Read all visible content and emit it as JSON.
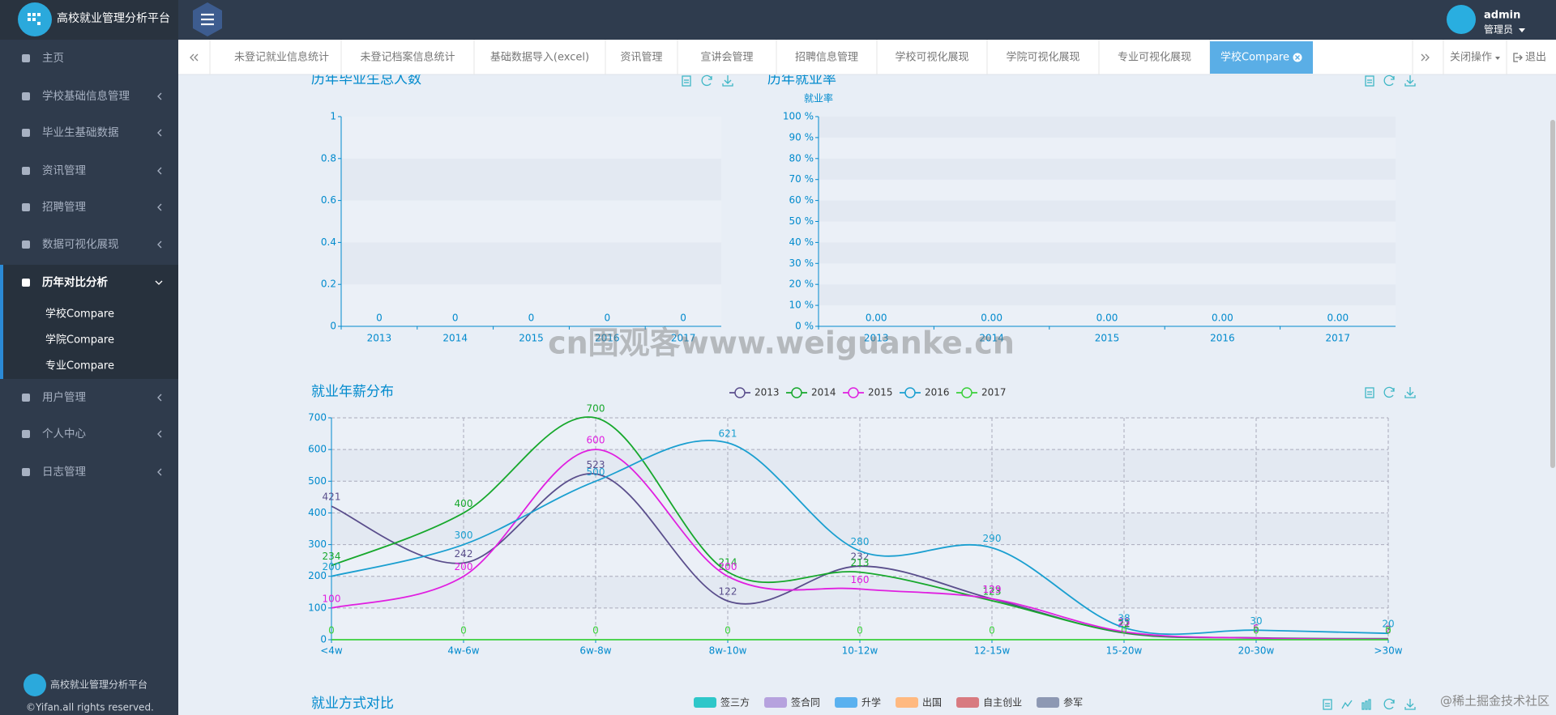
{
  "header": {
    "title": "高校就业管理分析平台",
    "user": "admin",
    "role": "管理员"
  },
  "sidebar": {
    "menu": [
      "主页",
      "学校基础信息管理",
      "毕业生基础数据",
      "资讯管理",
      "招聘管理",
      "数据可视化展现",
      "历年对比分析",
      "用户管理",
      "个人中心",
      "日志管理"
    ],
    "submenu": [
      "学校Compare",
      "学院Compare",
      "专业Compare"
    ],
    "footer_title": "高校就业管理分析平台",
    "copyright": "©Yifan.all rights reserved."
  },
  "tabs": [
    "未登记就业信息统计",
    "未登记档案信息统计",
    "基础数据导入(excel)",
    "资讯管理",
    "宣讲会管理",
    "招聘信息管理",
    "学校可视化展现",
    "学院可视化展现",
    "专业可视化展现",
    "学校Compare"
  ],
  "tab_actions": [
    "关闭操作",
    "退出"
  ],
  "chart_data": [
    {
      "type": "bar",
      "title": "历年毕业生总人数",
      "categories": [
        "2013",
        "2014",
        "2015",
        "2016",
        "2017"
      ],
      "values": [
        0,
        0,
        0,
        0,
        0
      ],
      "color": "#2ec7c9",
      "ylim": [
        0,
        1
      ],
      "yticks": [
        0,
        0.2,
        0.4,
        0.6,
        0.8,
        1
      ]
    },
    {
      "type": "bar",
      "title": "历年就业率",
      "y_label": "就业率",
      "categories": [
        "2013",
        "2014",
        "2015",
        "2016",
        "2017"
      ],
      "values": [
        0,
        0,
        0,
        0,
        0
      ],
      "value_labels": [
        "0.00",
        "0.00",
        "0.00",
        "0.00",
        "0.00"
      ],
      "color": "#2ec7c9",
      "ylim": [
        0,
        100
      ],
      "yticks": [
        {
          "value": 0,
          "label": "0 %"
        },
        {
          "value": 10,
          "label": "10 %"
        },
        {
          "value": 20,
          "label": "20 %"
        },
        {
          "value": 30,
          "label": "30 %"
        },
        {
          "value": 40,
          "label": "40 %"
        },
        {
          "value": 50,
          "label": "50 %"
        },
        {
          "value": 60,
          "label": "60 %"
        },
        {
          "value": 70,
          "label": "70 %"
        },
        {
          "value": 80,
          "label": "80 %"
        },
        {
          "value": 90,
          "label": "90 %"
        },
        {
          "value": 100,
          "label": "100 %"
        }
      ]
    },
    {
      "type": "line",
      "title": "就业年薪分布",
      "categories": [
        "<4w",
        "4w-6w",
        "6w-8w",
        "8w-10w",
        "10-12w",
        "12-15w",
        "15-20w",
        "20-30w",
        ">30w"
      ],
      "series": [
        {
          "name": "2013",
          "color": "#5a4e8c",
          "values": [
            421,
            242,
            523,
            122,
            232,
            129,
            21,
            6,
            3
          ]
        },
        {
          "name": "2014",
          "color": "#17a82c",
          "values": [
            234,
            400,
            700,
            214,
            213,
            123,
            22,
            5,
            3
          ]
        },
        {
          "name": "2015",
          "color": "#e01fe0",
          "values": [
            100,
            200,
            600,
            200,
            160,
            129,
            25,
            5,
            2
          ]
        },
        {
          "name": "2016",
          "color": "#1a9fd0",
          "values": [
            200,
            300,
            500,
            621,
            280,
            290,
            38,
            30,
            20
          ]
        },
        {
          "name": "2017",
          "color": "#3ad03a",
          "values": [
            0,
            0,
            0,
            0,
            0,
            0,
            0,
            0,
            0
          ]
        }
      ],
      "ylim": [
        0,
        700
      ],
      "yticks": [
        0,
        100,
        200,
        300,
        400,
        500,
        600,
        700
      ],
      "grid": true
    },
    {
      "type": "bar",
      "title": "就业方式对比",
      "series": [
        {
          "name": "签三方",
          "color": "#2ec7c9"
        },
        {
          "name": "签合同",
          "color": "#b6a2de"
        },
        {
          "name": "升学",
          "color": "#5ab1ef"
        },
        {
          "name": "出国",
          "color": "#ffb980"
        },
        {
          "name": "自主创业",
          "color": "#d87a80"
        },
        {
          "name": "参军",
          "color": "#8d98b3"
        }
      ]
    }
  ],
  "watermark": "cn围观客www.weiguanke.cn",
  "credit": "@稀土掘金技术社区"
}
